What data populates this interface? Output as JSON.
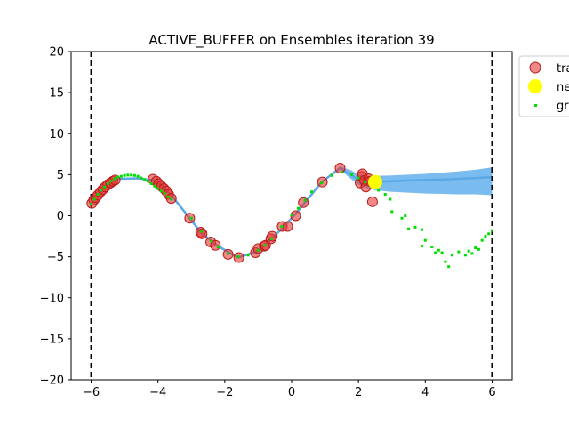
{
  "chart_data": {
    "type": "scatter",
    "title": "ACTIVE_BUFFER on Ensembles iteration 39",
    "xlim": [
      -6.6,
      6.6
    ],
    "ylim": [
      -20,
      20
    ],
    "xticks": [
      -6,
      -4,
      -2,
      0,
      2,
      4,
      6
    ],
    "yticks": [
      -20,
      -15,
      -10,
      -5,
      0,
      5,
      10,
      15,
      20
    ],
    "boundaries": [
      -6,
      6
    ],
    "legend": {
      "placement": "top-right (outside axes, clipped)",
      "entries": [
        {
          "label": "tra",
          "marker": "circle",
          "color": "#e06666"
        },
        {
          "label": "ne",
          "marker": "circle",
          "color": "#ffff00"
        },
        {
          "label": "gr",
          "marker": "dot",
          "color": "#00dd00"
        }
      ]
    },
    "colors": {
      "train": "#e53935",
      "train_edge": "#b71c1c",
      "new": "#ffff00",
      "ground_truth": "#00dd00",
      "band": "#6cb4ee",
      "mean_line": "#5aa8e6"
    },
    "series": [
      {
        "name": "train",
        "points": [
          [
            -5.98,
            1.5
          ],
          [
            -5.92,
            1.9
          ],
          [
            -5.86,
            2.2
          ],
          [
            -5.8,
            2.5
          ],
          [
            -5.72,
            2.9
          ],
          [
            -5.65,
            3.2
          ],
          [
            -5.58,
            3.5
          ],
          [
            -5.5,
            3.8
          ],
          [
            -5.42,
            4.0
          ],
          [
            -5.35,
            4.2
          ],
          [
            -5.28,
            4.35
          ],
          [
            -4.15,
            4.45
          ],
          [
            -4.05,
            4.2
          ],
          [
            -3.98,
            3.9
          ],
          [
            -3.9,
            3.6
          ],
          [
            -3.82,
            3.3
          ],
          [
            -3.75,
            3.0
          ],
          [
            -3.68,
            2.6
          ],
          [
            -3.6,
            2.1
          ],
          [
            -3.05,
            -0.3
          ],
          [
            -2.72,
            -2.0
          ],
          [
            -2.68,
            -2.2
          ],
          [
            -2.42,
            -3.2
          ],
          [
            -2.28,
            -3.6
          ],
          [
            -1.9,
            -4.7
          ],
          [
            -1.58,
            -5.1
          ],
          [
            -1.08,
            -4.5
          ],
          [
            -1.0,
            -4.0
          ],
          [
            -0.82,
            -3.7
          ],
          [
            -0.78,
            -3.6
          ],
          [
            -0.62,
            -2.8
          ],
          [
            -0.58,
            -2.5
          ],
          [
            -0.28,
            -1.3
          ],
          [
            -0.12,
            -1.3
          ],
          [
            0.12,
            0.0
          ],
          [
            0.35,
            1.6
          ],
          [
            0.92,
            4.1
          ],
          [
            1.45,
            5.8
          ],
          [
            2.05,
            4.0
          ],
          [
            2.1,
            4.8
          ],
          [
            2.12,
            5.1
          ],
          [
            2.18,
            4.3
          ],
          [
            2.22,
            3.5
          ],
          [
            2.3,
            4.5
          ],
          [
            2.35,
            4.2
          ],
          [
            2.42,
            1.7
          ]
        ]
      },
      {
        "name": "new",
        "points": [
          [
            2.5,
            4.1
          ]
        ]
      },
      {
        "name": "ground_truth",
        "points": [
          [
            -6.0,
            1.4
          ],
          [
            -5.9,
            2.0
          ],
          [
            -5.8,
            2.6
          ],
          [
            -5.7,
            3.1
          ],
          [
            -5.6,
            3.5
          ],
          [
            -5.5,
            3.9
          ],
          [
            -5.4,
            4.2
          ],
          [
            -5.3,
            4.5
          ],
          [
            -5.2,
            4.7
          ],
          [
            -5.1,
            4.8
          ],
          [
            -5.0,
            4.9
          ],
          [
            -4.9,
            4.95
          ],
          [
            -4.8,
            4.95
          ],
          [
            -4.7,
            4.9
          ],
          [
            -4.6,
            4.8
          ],
          [
            -4.5,
            4.6
          ],
          [
            -4.4,
            4.4
          ],
          [
            -4.3,
            4.2
          ],
          [
            -4.2,
            3.9
          ],
          [
            -4.1,
            3.6
          ],
          [
            -4.0,
            3.3
          ],
          [
            -3.9,
            3.0
          ],
          [
            -3.8,
            2.7
          ],
          [
            -3.7,
            2.3
          ],
          [
            -3.6,
            2.0
          ],
          [
            -3.0,
            -0.3
          ],
          [
            -2.7,
            -1.9
          ],
          [
            -2.4,
            -3.1
          ],
          [
            -2.2,
            -3.8
          ],
          [
            -1.9,
            -4.6
          ],
          [
            -1.6,
            -5.0
          ],
          [
            -1.3,
            -4.8
          ],
          [
            -1.0,
            -4.2
          ],
          [
            -0.8,
            -3.6
          ],
          [
            -0.6,
            -2.8
          ],
          [
            -0.3,
            -1.3
          ],
          [
            0.0,
            0.1
          ],
          [
            0.2,
            0.9
          ],
          [
            0.4,
            1.9
          ],
          [
            0.6,
            2.9
          ],
          [
            0.9,
            4.0
          ],
          [
            1.2,
            4.9
          ],
          [
            1.5,
            5.3
          ],
          [
            1.8,
            5.0
          ],
          [
            2.0,
            4.6
          ],
          [
            2.2,
            4.1
          ],
          [
            2.4,
            3.6
          ],
          [
            2.6,
            3.1
          ],
          [
            2.8,
            2.6
          ],
          [
            2.95,
            2.0
          ],
          [
            3.0,
            0.5
          ],
          [
            3.3,
            -0.3
          ],
          [
            3.4,
            0.0
          ],
          [
            3.5,
            -1.6
          ],
          [
            3.7,
            -1.4
          ],
          [
            3.9,
            -1.7
          ],
          [
            3.9,
            -3.7
          ],
          [
            4.0,
            -3.0
          ],
          [
            4.2,
            -3.8
          ],
          [
            4.3,
            -4.5
          ],
          [
            4.4,
            -4.2
          ],
          [
            4.5,
            -4.5
          ],
          [
            4.6,
            -5.6
          ],
          [
            4.7,
            -6.2
          ],
          [
            4.8,
            -4.8
          ],
          [
            5.0,
            -4.4
          ],
          [
            5.2,
            -4.8
          ],
          [
            5.3,
            -4.3
          ],
          [
            5.4,
            -4.6
          ],
          [
            5.5,
            -3.9
          ],
          [
            5.6,
            -4.1
          ],
          [
            5.7,
            -3.0
          ],
          [
            5.8,
            -2.5
          ],
          [
            5.9,
            -2.2
          ],
          [
            6.0,
            -1.8
          ]
        ]
      },
      {
        "name": "ensemble_mean",
        "points": [
          [
            -6.0,
            1.5
          ],
          [
            -5.5,
            3.8
          ],
          [
            -5.2,
            4.5
          ],
          [
            -4.6,
            4.55
          ],
          [
            -4.1,
            4.3
          ],
          [
            -3.8,
            3.3
          ],
          [
            -3.5,
            2.0
          ],
          [
            -2.7,
            -2.1
          ],
          [
            -2.2,
            -3.7
          ],
          [
            -1.6,
            -5.1
          ],
          [
            -1.0,
            -4.3
          ],
          [
            -0.6,
            -2.8
          ],
          [
            -0.2,
            -1.2
          ],
          [
            0.2,
            0.6
          ],
          [
            0.9,
            4.1
          ],
          [
            1.45,
            5.8
          ],
          [
            2.0,
            4.4
          ],
          [
            2.5,
            4.1
          ],
          [
            3.0,
            4.2
          ],
          [
            3.5,
            4.3
          ],
          [
            4.0,
            4.35
          ],
          [
            4.5,
            4.4
          ],
          [
            5.0,
            4.5
          ],
          [
            5.5,
            4.6
          ],
          [
            6.0,
            4.7
          ]
        ]
      }
    ],
    "uncertainty_band": {
      "x": [
        -6.0,
        -5.5,
        -5.2,
        -4.6,
        -4.1,
        -3.8,
        -3.5,
        -2.7,
        -2.2,
        -1.6,
        -1.0,
        -0.6,
        -0.2,
        0.2,
        0.9,
        1.45,
        1.8,
        2.0,
        2.3,
        2.5,
        3.0,
        3.5,
        4.0,
        4.5,
        5.0,
        5.5,
        6.0
      ],
      "upper": [
        1.6,
        3.9,
        4.6,
        4.65,
        4.4,
        3.4,
        2.1,
        -2.0,
        -3.6,
        -5.0,
        -4.2,
        -2.7,
        -1.1,
        0.7,
        4.2,
        6.0,
        5.5,
        5.0,
        4.8,
        4.85,
        4.9,
        5.0,
        5.1,
        5.25,
        5.4,
        5.6,
        5.9
      ],
      "lower": [
        1.4,
        3.7,
        4.4,
        4.45,
        4.2,
        3.2,
        1.9,
        -2.2,
        -3.8,
        -5.2,
        -4.4,
        -2.9,
        -1.3,
        0.5,
        4.0,
        5.6,
        4.4,
        3.8,
        3.3,
        3.1,
        2.9,
        2.8,
        2.7,
        2.65,
        2.6,
        2.6,
        2.5
      ]
    }
  }
}
